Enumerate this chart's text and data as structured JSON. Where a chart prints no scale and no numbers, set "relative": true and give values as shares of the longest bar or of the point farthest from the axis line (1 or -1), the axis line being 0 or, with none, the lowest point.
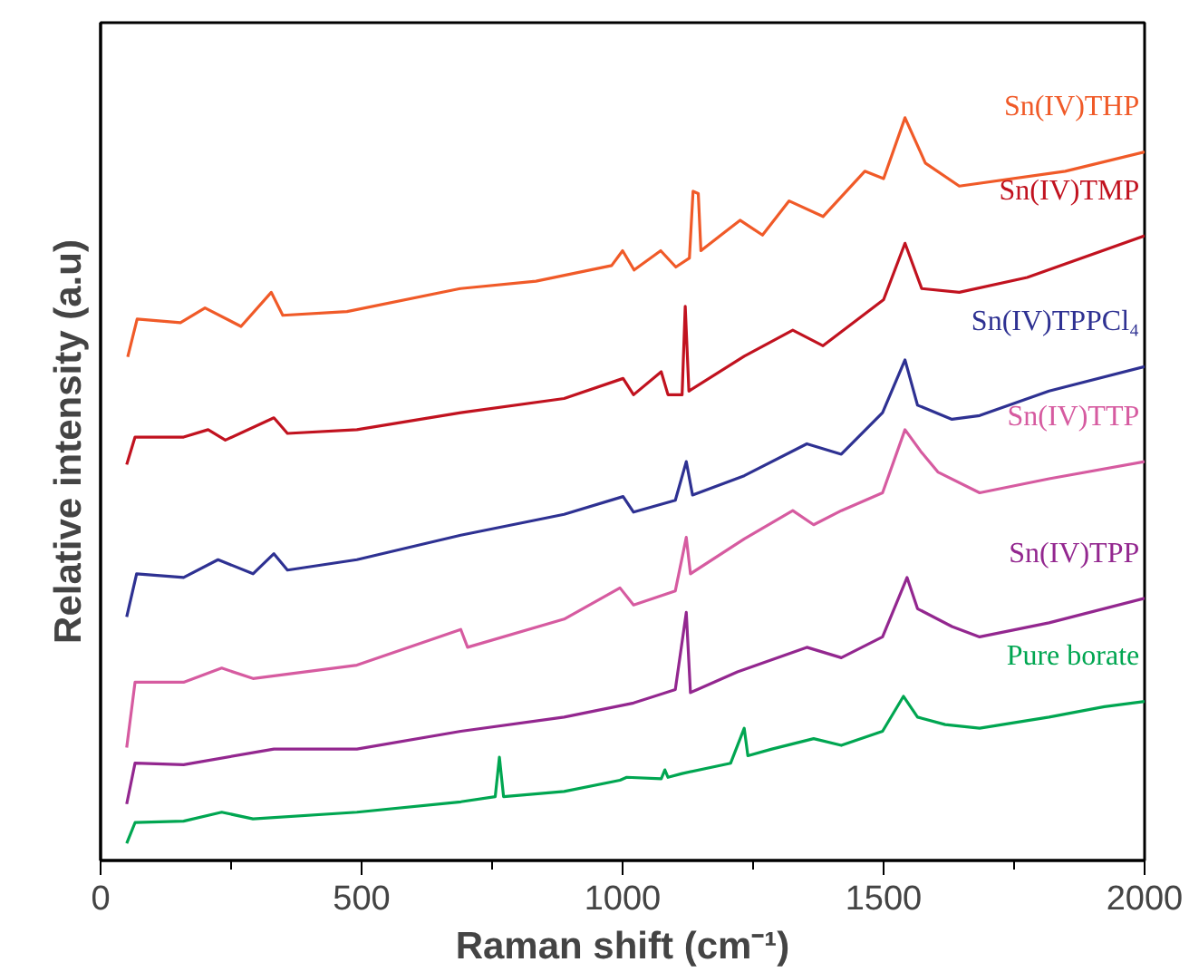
{
  "chart_data": {
    "type": "line",
    "relative": true,
    "xlabel": "Raman shift (cm⁻¹)",
    "ylabel": "Relative intensity (a.u)",
    "xlim": [
      0,
      2000
    ],
    "xticks": [
      0,
      {
        "value": 250,
        "label": null
      },
      500,
      {
        "value": 750,
        "label": null
      },
      1000,
      {
        "value": 1250,
        "label": null
      },
      1500,
      {
        "value": 1750,
        "label": null
      },
      2000
    ],
    "tick_labels": "x",
    "series": [
      {
        "name": "Sn(IV)THP",
        "color": "#f05a28",
        "x": [
          52,
          70,
          153,
          200,
          269,
          327,
          349,
          472,
          689,
          834,
          979,
          1000,
          1022,
          1073,
          1102,
          1128,
          1135,
          1145,
          1150,
          1225,
          1268,
          1319,
          1384,
          1464,
          1500,
          1541,
          1580,
          1645,
          1848,
          2000
        ],
        "values": [
          0.678,
          0.729,
          0.724,
          0.744,
          0.719,
          0.765,
          0.734,
          0.739,
          0.77,
          0.78,
          0.801,
          0.821,
          0.795,
          0.821,
          0.799,
          0.811,
          0.901,
          0.898,
          0.821,
          0.862,
          0.842,
          0.888,
          0.867,
          0.928,
          0.918,
          1.0,
          0.939,
          0.908,
          0.928,
          0.954
        ]
      },
      {
        "name": "Sn(IV)TMP",
        "color": "#c1121f",
        "x": [
          50,
          66,
          159,
          206,
          239,
          332,
          358,
          491,
          690,
          888,
          1001,
          1021,
          1074,
          1087,
          1114,
          1120,
          1127,
          1233,
          1326,
          1384,
          1500,
          1541,
          1573,
          1645,
          1775,
          2000
        ],
        "values": [
          0.533,
          0.57,
          0.57,
          0.58,
          0.566,
          0.596,
          0.575,
          0.58,
          0.603,
          0.622,
          0.649,
          0.627,
          0.658,
          0.627,
          0.627,
          0.746,
          0.632,
          0.679,
          0.714,
          0.693,
          0.755,
          0.831,
          0.77,
          0.765,
          0.785,
          0.841
        ]
      },
      {
        "name": "Sn(IV)TPPCl₄",
        "color": "#2e3192",
        "x": [
          50,
          69,
          159,
          225,
          292,
          332,
          358,
          491,
          690,
          888,
          1001,
          1021,
          1101,
          1122,
          1134,
          1233,
          1353,
          1419,
          1498,
          1541,
          1565,
          1631,
          1684,
          1817,
          2000
        ],
        "values": [
          0.328,
          0.386,
          0.381,
          0.405,
          0.386,
          0.413,
          0.391,
          0.405,
          0.438,
          0.466,
          0.49,
          0.469,
          0.485,
          0.537,
          0.492,
          0.518,
          0.561,
          0.547,
          0.603,
          0.674,
          0.613,
          0.594,
          0.599,
          0.632,
          0.665
        ]
      },
      {
        "name": "Sn(IV)TTP",
        "color": "#d65ba0",
        "x": [
          50,
          66,
          159,
          232,
          292,
          491,
          690,
          703,
          888,
          995,
          1021,
          1101,
          1122,
          1130,
          1233,
          1326,
          1366,
          1419,
          1498,
          1541,
          1571,
          1604,
          1684,
          1817,
          2000
        ],
        "values": [
          0.152,
          0.24,
          0.24,
          0.259,
          0.245,
          0.263,
          0.311,
          0.287,
          0.325,
          0.367,
          0.344,
          0.363,
          0.435,
          0.386,
          0.433,
          0.471,
          0.452,
          0.471,
          0.495,
          0.58,
          0.551,
          0.523,
          0.495,
          0.514,
          0.537
        ]
      },
      {
        "name": "Sn(IV)TPP",
        "color": "#93278f",
        "x": [
          50,
          66,
          159,
          332,
          491,
          690,
          888,
          1021,
          1101,
          1122,
          1130,
          1220,
          1353,
          1419,
          1498,
          1545,
          1565,
          1631,
          1684,
          1817,
          2000
        ],
        "values": [
          0.076,
          0.131,
          0.129,
          0.15,
          0.15,
          0.174,
          0.193,
          0.212,
          0.23,
          0.334,
          0.226,
          0.254,
          0.287,
          0.273,
          0.301,
          0.381,
          0.339,
          0.315,
          0.301,
          0.32,
          0.353
        ]
      },
      {
        "name": "Pure borate",
        "color": "#00a651",
        "x": [
          50,
          66,
          159,
          232,
          292,
          491,
          690,
          756,
          764,
          772,
          888,
          995,
          1008,
          1074,
          1081,
          1087,
          1114,
          1207,
          1233,
          1240,
          1286,
          1366,
          1419,
          1498,
          1538,
          1565,
          1618,
          1684,
          1817,
          1923,
          2000
        ],
        "values": [
          0.023,
          0.051,
          0.053,
          0.065,
          0.056,
          0.065,
          0.079,
          0.086,
          0.139,
          0.086,
          0.093,
          0.108,
          0.112,
          0.11,
          0.122,
          0.112,
          0.117,
          0.131,
          0.178,
          0.141,
          0.15,
          0.164,
          0.155,
          0.174,
          0.221,
          0.193,
          0.183,
          0.178,
          0.193,
          0.207,
          0.214
        ]
      }
    ]
  }
}
